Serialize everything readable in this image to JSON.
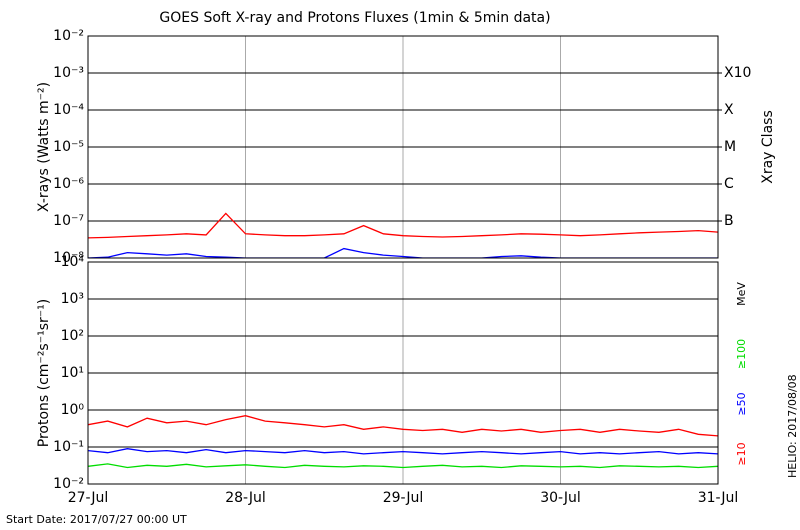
{
  "title": "GOES Soft X-ray and Protons Fluxes   (1min & 5min data)",
  "footer": "Start Date: 2017/07/27 00:00 UT",
  "stamp": "HELIO: 2017/08/08",
  "chart_data": [
    {
      "type": "line",
      "ylabel": "X-rays (Watts m⁻²)",
      "yscale": "log",
      "grid": true,
      "ylim": [
        1e-08,
        0.01
      ],
      "yticks": [
        {
          "value": 1e-08,
          "label": "10⁻⁸"
        },
        {
          "value": 1e-07,
          "label": "10⁻⁷"
        },
        {
          "value": 1e-06,
          "label": "10⁻⁶"
        },
        {
          "value": 1e-05,
          "label": "10⁻⁵"
        },
        {
          "value": 0.0001,
          "label": "10⁻⁴"
        },
        {
          "value": 0.001,
          "label": "10⁻³"
        },
        {
          "value": 0.01,
          "label": "10⁻²"
        }
      ],
      "y2label": "Xray Class",
      "y2ticks": [
        {
          "value": 1e-07,
          "label": "B"
        },
        {
          "value": 1e-06,
          "label": "C"
        },
        {
          "value": 1e-05,
          "label": "M"
        },
        {
          "value": 0.0001,
          "label": "X"
        },
        {
          "value": 0.001,
          "label": "X10"
        }
      ],
      "xlim": [
        0,
        4
      ],
      "xticks": [
        {
          "value": 0,
          "label": "27-Jul"
        },
        {
          "value": 1,
          "label": "28-Jul"
        },
        {
          "value": 2,
          "label": "29-Jul"
        },
        {
          "value": 3,
          "label": "30-Jul"
        },
        {
          "value": 4,
          "label": "31-Jul"
        }
      ],
      "x": [
        0,
        0.125,
        0.25,
        0.375,
        0.5,
        0.625,
        0.75,
        0.875,
        1,
        1.125,
        1.25,
        1.375,
        1.5,
        1.625,
        1.75,
        1.875,
        2,
        2.125,
        2.25,
        2.375,
        2.5,
        2.625,
        2.75,
        2.875,
        3,
        3.125,
        3.25,
        3.375,
        3.5,
        3.625,
        3.75,
        3.875,
        4
      ],
      "series": [
        {
          "name": "long",
          "color": "#ff0000",
          "values": [
            3.5e-08,
            3.6e-08,
            3.8e-08,
            4e-08,
            4.2e-08,
            4.5e-08,
            4.2e-08,
            1.6e-07,
            4.5e-08,
            4.2e-08,
            4e-08,
            4e-08,
            4.2e-08,
            4.5e-08,
            7.5e-08,
            4.5e-08,
            4e-08,
            3.8e-08,
            3.7e-08,
            3.8e-08,
            4e-08,
            4.2e-08,
            4.5e-08,
            4.4e-08,
            4.2e-08,
            4e-08,
            4.2e-08,
            4.5e-08,
            4.8e-08,
            5e-08,
            5.2e-08,
            5.5e-08,
            5e-08
          ]
        },
        {
          "name": "short",
          "color": "#0000ff",
          "values": [
            1e-08,
            1.05e-08,
            1.4e-08,
            1.3e-08,
            1.2e-08,
            1.3e-08,
            1.1e-08,
            1.05e-08,
            1e-08,
            1e-08,
            1e-08,
            1e-08,
            1e-08,
            1.8e-08,
            1.4e-08,
            1.2e-08,
            1.1e-08,
            1e-08,
            1e-08,
            1e-08,
            1e-08,
            1.1e-08,
            1.15e-08,
            1.05e-08,
            1e-08,
            1e-08,
            1e-08,
            1e-08,
            1e-08,
            1e-08,
            1e-08,
            1e-08,
            1e-08
          ]
        }
      ]
    },
    {
      "type": "line",
      "ylabel": "Protons (cm⁻²s⁻¹sr⁻¹)",
      "yscale": "log",
      "grid": true,
      "ylim": [
        0.01,
        10000.0
      ],
      "yticks": [
        {
          "value": 0.01,
          "label": "10⁻²"
        },
        {
          "value": 0.1,
          "label": "10⁻¹"
        },
        {
          "value": 1,
          "label": "10⁰"
        },
        {
          "value": 10,
          "label": "10¹"
        },
        {
          "value": 100,
          "label": "10²"
        },
        {
          "value": 1000,
          "label": "10³"
        },
        {
          "value": 10000,
          "label": "10⁴"
        }
      ],
      "threshold": 10,
      "unit": "MeV",
      "xlim": [
        0,
        4
      ],
      "xticks": [
        {
          "value": 0,
          "label": "27-Jul"
        },
        {
          "value": 1,
          "label": "28-Jul"
        },
        {
          "value": 2,
          "label": "29-Jul"
        },
        {
          "value": 3,
          "label": "30-Jul"
        },
        {
          "value": 4,
          "label": "31-Jul"
        }
      ],
      "x": [
        0,
        0.125,
        0.25,
        0.375,
        0.5,
        0.625,
        0.75,
        0.875,
        1,
        1.125,
        1.25,
        1.375,
        1.5,
        1.625,
        1.75,
        1.875,
        2,
        2.125,
        2.25,
        2.375,
        2.5,
        2.625,
        2.75,
        2.875,
        3,
        3.125,
        3.25,
        3.375,
        3.5,
        3.625,
        3.75,
        3.875,
        4
      ],
      "series": [
        {
          "name": "≥10",
          "color": "#ff0000",
          "values": [
            0.4,
            0.5,
            0.35,
            0.6,
            0.45,
            0.5,
            0.4,
            0.55,
            0.7,
            0.5,
            0.45,
            0.4,
            0.35,
            0.4,
            0.3,
            0.35,
            0.3,
            0.28,
            0.3,
            0.25,
            0.3,
            0.27,
            0.3,
            0.25,
            0.28,
            0.3,
            0.25,
            0.3,
            0.27,
            0.25,
            0.3,
            0.22,
            0.2
          ]
        },
        {
          "name": "≥50",
          "color": "#0000ff",
          "values": [
            0.08,
            0.07,
            0.09,
            0.075,
            0.08,
            0.07,
            0.085,
            0.07,
            0.08,
            0.075,
            0.07,
            0.08,
            0.07,
            0.075,
            0.065,
            0.07,
            0.075,
            0.07,
            0.065,
            0.07,
            0.075,
            0.07,
            0.065,
            0.07,
            0.075,
            0.065,
            0.07,
            0.065,
            0.07,
            0.075,
            0.065,
            0.07,
            0.065
          ]
        },
        {
          "name": "≥100",
          "color": "#00dd00",
          "values": [
            0.03,
            0.035,
            0.028,
            0.032,
            0.03,
            0.034,
            0.029,
            0.031,
            0.033,
            0.03,
            0.028,
            0.032,
            0.03,
            0.029,
            0.031,
            0.03,
            0.028,
            0.03,
            0.032,
            0.029,
            0.03,
            0.028,
            0.031,
            0.03,
            0.029,
            0.03,
            0.028,
            0.031,
            0.03,
            0.029,
            0.03,
            0.028,
            0.03
          ]
        }
      ]
    }
  ]
}
